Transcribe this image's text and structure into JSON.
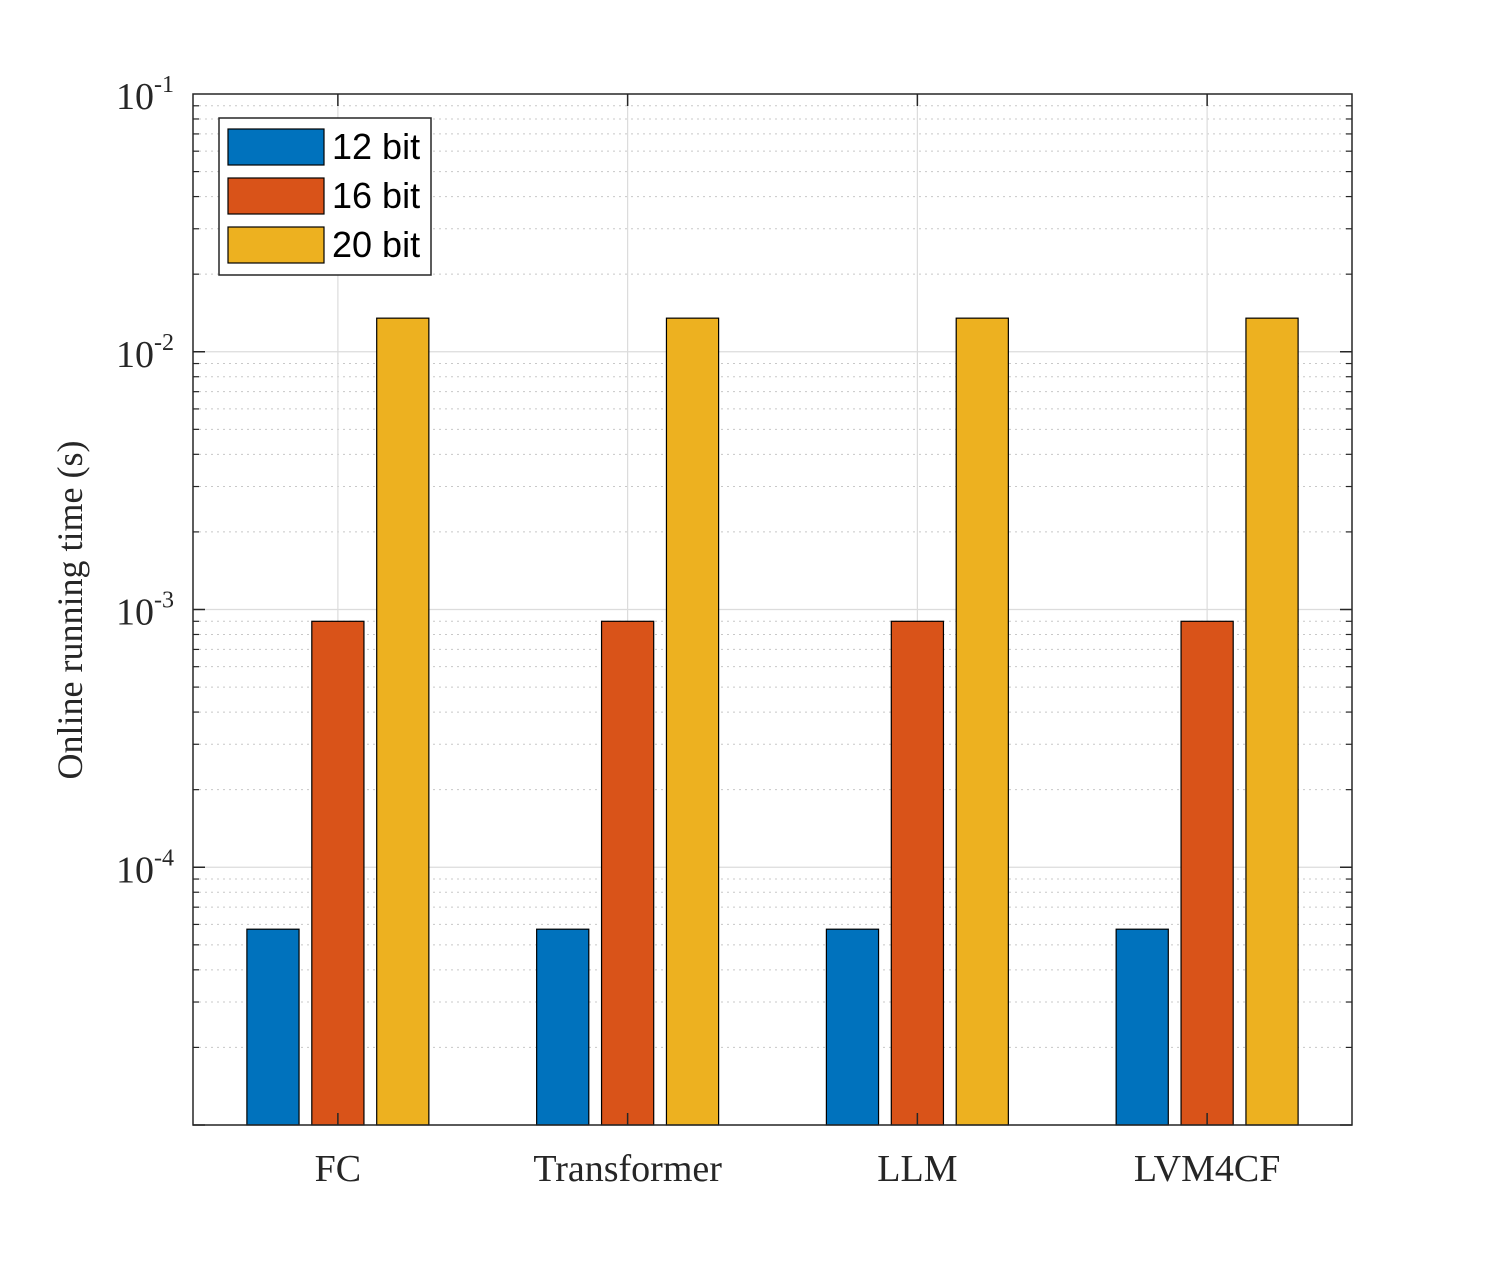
{
  "chart_data": {
    "type": "bar",
    "title": "",
    "xlabel": "",
    "ylabel": "Online running time (s)",
    "yscale": "log",
    "ylim": [
      1e-05,
      0.1
    ],
    "yticks": [
      {
        "value": 0.1,
        "base": "10",
        "exp": "-1"
      },
      {
        "value": 0.01,
        "base": "10",
        "exp": "-2"
      },
      {
        "value": 0.001,
        "base": "10",
        "exp": "-3"
      },
      {
        "value": 0.0001,
        "base": "10",
        "exp": "-4"
      }
    ],
    "grid": true,
    "minor_grid": true,
    "legend_position": "top-left",
    "categories": [
      "FC",
      "Transformer",
      "LLM",
      "LVM4CF"
    ],
    "series": [
      {
        "name": "12 bit",
        "color": "#0072BD",
        "values": [
          5.75e-05,
          5.75e-05,
          5.75e-05,
          5.75e-05
        ]
      },
      {
        "name": "16 bit",
        "color": "#D95319",
        "values": [
          0.0009,
          0.0009,
          0.0009,
          0.0009
        ]
      },
      {
        "name": "20 bit",
        "color": "#EDB120",
        "values": [
          0.0135,
          0.0135,
          0.0135,
          0.0135
        ]
      }
    ]
  }
}
